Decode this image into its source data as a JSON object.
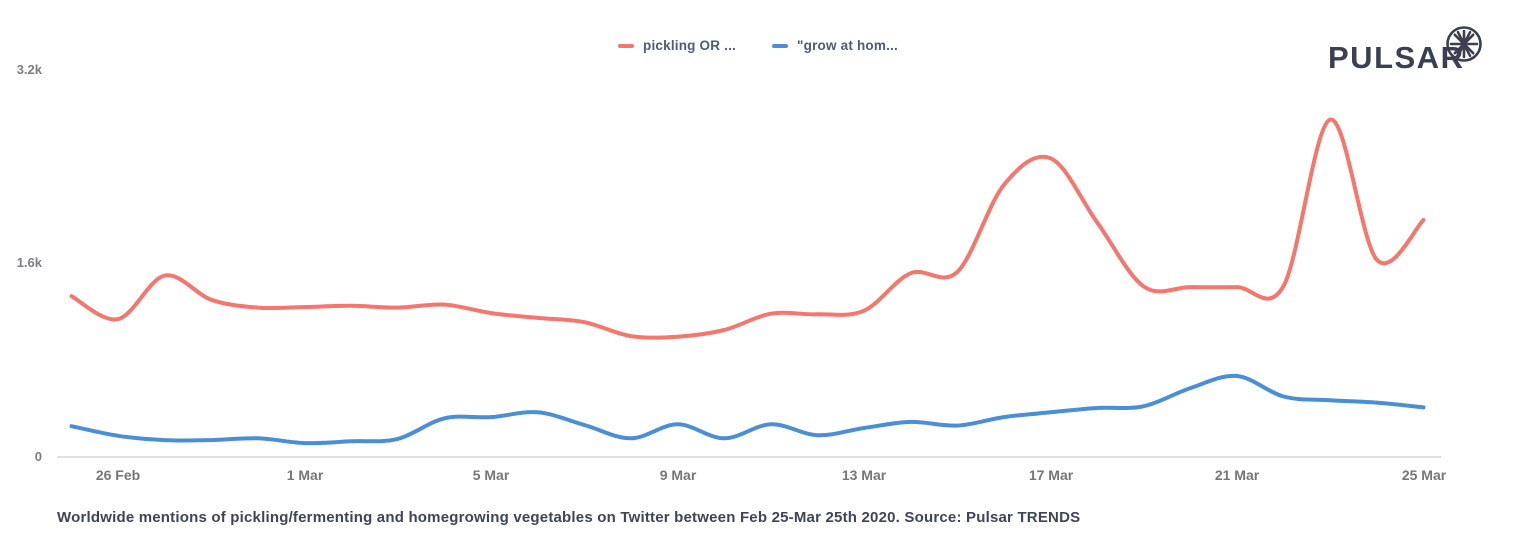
{
  "brand": {
    "name": "PULSAR",
    "logo_color": "#3b4050",
    "icon": "starburst-icon"
  },
  "legend": {
    "items": [
      {
        "label": "pickling OR ...",
        "color": "#f4766c"
      },
      {
        "label": "\"grow at hom...",
        "color": "#4a8fd6"
      }
    ]
  },
  "caption": "Worldwide mentions of pickling/fermenting and homegrowing vegetables on Twitter between Feb 25-Mar 25th 2020. Source: Pulsar TRENDS",
  "chart_data": {
    "type": "line",
    "title": "Worldwide mentions of pickling/fermenting and homegrowing vegetables on Twitter",
    "x": [
      "25 Feb",
      "26 Feb",
      "27 Feb",
      "28 Feb",
      "29 Feb",
      "1 Mar",
      "2 Mar",
      "3 Mar",
      "4 Mar",
      "5 Mar",
      "6 Mar",
      "7 Mar",
      "8 Mar",
      "9 Mar",
      "10 Mar",
      "11 Mar",
      "12 Mar",
      "13 Mar",
      "14 Mar",
      "15 Mar",
      "16 Mar",
      "17 Mar",
      "18 Mar",
      "19 Mar",
      "20 Mar",
      "21 Mar",
      "22 Mar",
      "23 Mar",
      "24 Mar",
      "25 Mar"
    ],
    "series": [
      {
        "name": "pickling OR ...",
        "color": "#f4766c",
        "values": [
          1330,
          1140,
          1500,
          1300,
          1235,
          1240,
          1250,
          1235,
          1260,
          1190,
          1150,
          1115,
          1000,
          995,
          1050,
          1185,
          1180,
          1210,
          1520,
          1530,
          2250,
          2470,
          1940,
          1410,
          1405,
          1405,
          1415,
          2790,
          1630,
          1960
        ]
      },
      {
        "name": "\"grow at hom...",
        "color": "#4a8fd6",
        "values": [
          255,
          175,
          140,
          140,
          155,
          115,
          130,
          150,
          320,
          330,
          370,
          265,
          155,
          270,
          155,
          270,
          180,
          240,
          290,
          260,
          330,
          370,
          405,
          420,
          570,
          670,
          500,
          470,
          450,
          410
        ]
      }
    ],
    "xticks": [
      "26 Feb",
      "1 Mar",
      "5 Mar",
      "9 Mar",
      "13 Mar",
      "17 Mar",
      "21 Mar",
      "25 Mar"
    ],
    "yticks": [
      {
        "label": "0",
        "value": 0
      },
      {
        "label": "1.6k",
        "value": 1600
      },
      {
        "label": "3.2k",
        "value": 3200
      }
    ],
    "ylim": [
      0,
      3200
    ],
    "grid": false,
    "legend_position": "top-center",
    "axis_color": "#dde0e4",
    "tick_color": "#76787c"
  }
}
